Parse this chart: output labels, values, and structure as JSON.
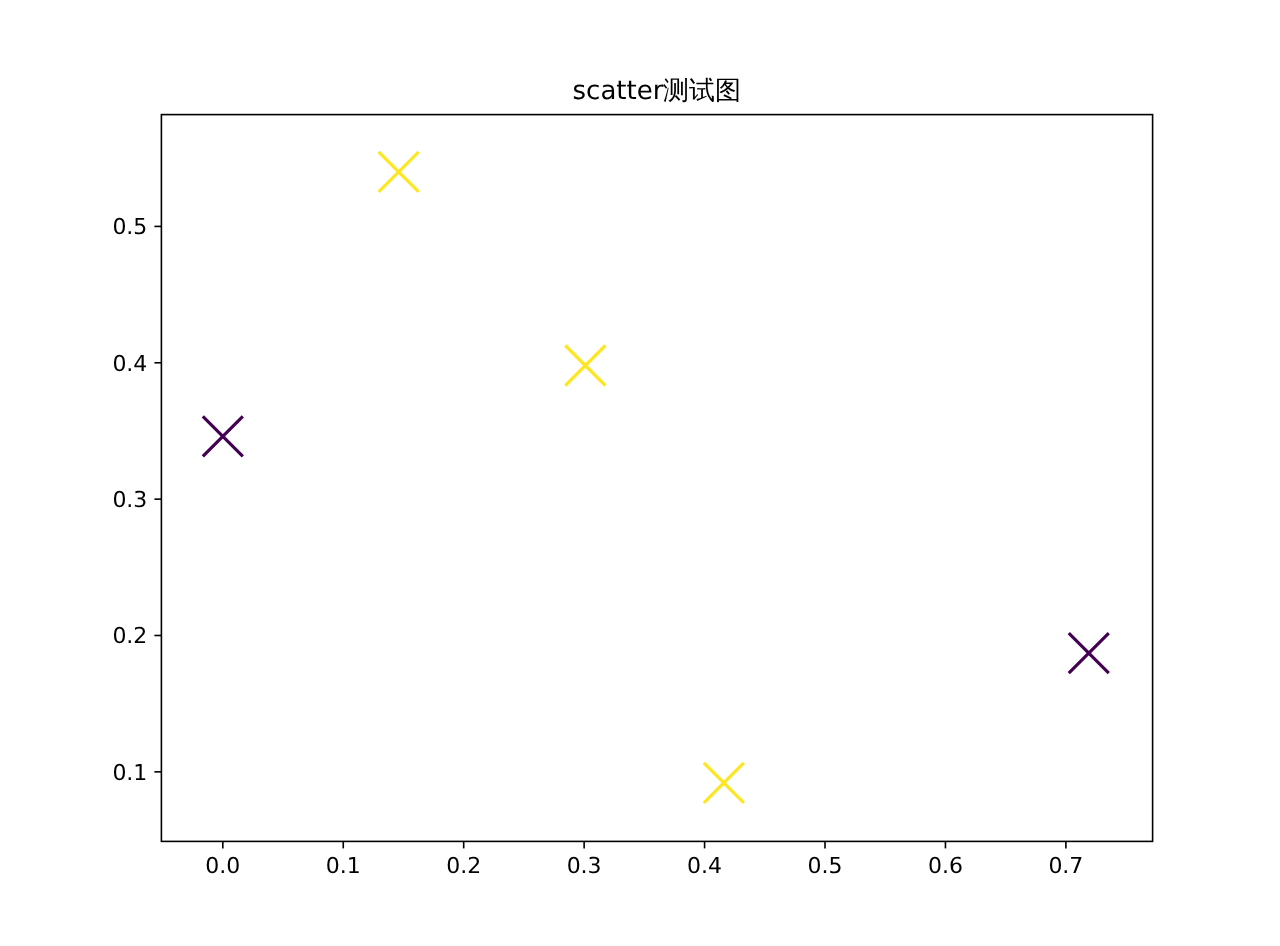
{
  "chart_data": {
    "type": "scatter",
    "title": "scatter测试图",
    "x": [
      0.0,
      0.146,
      0.301,
      0.416,
      0.719
    ],
    "values": [
      0.346,
      0.54,
      0.398,
      0.092,
      0.187
    ],
    "colors": [
      "#440154",
      "#fde725",
      "#fde725",
      "#fde725",
      "#440154"
    ],
    "marker": "cross",
    "xlim": [
      -0.051,
      0.772
    ],
    "ylim": [
      0.049,
      0.582
    ],
    "xticks": [
      {
        "value": 0.0,
        "label": "0.0"
      },
      0.1,
      0.2,
      0.3,
      0.4,
      0.5,
      0.6,
      0.7
    ],
    "yticks": [
      0.1,
      0.2,
      0.3,
      0.4,
      0.5
    ]
  }
}
